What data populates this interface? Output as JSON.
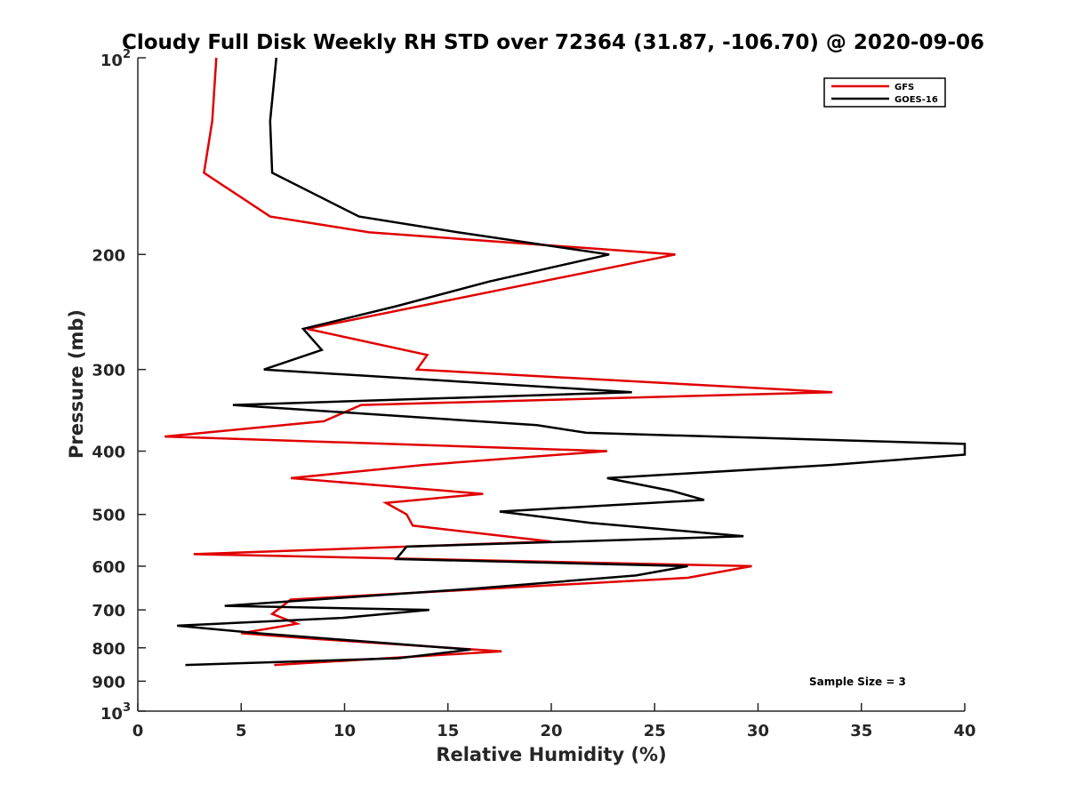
{
  "chart_data": {
    "type": "line",
    "title": "Cloudy Full Disk Weekly RH STD over 72364 (31.87, -106.70) @ 2020-09-06",
    "xlabel": "Relative Humidity (%)",
    "ylabel": "Pressure (mb)",
    "xlim": [
      0,
      40
    ],
    "ylim": [
      100,
      1000
    ],
    "y_scale": "log",
    "y_reversed": true,
    "grid": false,
    "legend_position": "top-right",
    "annotation": "Sample Size = 3",
    "x_ticks": [
      "0",
      "5",
      "10",
      "15",
      "20",
      "25",
      "30",
      "35",
      "40"
    ],
    "y_ticks": [
      {
        "value": 100,
        "base": "10",
        "exp": "2",
        "label": ""
      },
      {
        "value": 200,
        "base": "",
        "exp": "",
        "label": "200"
      },
      {
        "value": 300,
        "base": "",
        "exp": "",
        "label": "300"
      },
      {
        "value": 400,
        "base": "",
        "exp": "",
        "label": "400"
      },
      {
        "value": 500,
        "base": "",
        "exp": "",
        "label": "500"
      },
      {
        "value": 600,
        "base": "",
        "exp": "",
        "label": "600"
      },
      {
        "value": 700,
        "base": "",
        "exp": "",
        "label": "700"
      },
      {
        "value": 800,
        "base": "",
        "exp": "",
        "label": "800"
      },
      {
        "value": 900,
        "base": "",
        "exp": "",
        "label": "900"
      },
      {
        "value": 1000,
        "base": "10",
        "exp": "3",
        "label": ""
      }
    ],
    "series": [
      {
        "name": "GFS",
        "color": "#e00000",
        "x": [
          3.8,
          3.6,
          3.2,
          6.4,
          11.2,
          26.0,
          8.2,
          14.0,
          13.5,
          33.6,
          10.8,
          9.0,
          1.3,
          22.7,
          13.8,
          7.4,
          16.7,
          12.0,
          13.0,
          13.3,
          20.0,
          2.7,
          29.7,
          26.6,
          7.4,
          6.5,
          7.7,
          5.0,
          8.5,
          17.6,
          6.6
        ],
        "y": [
          100,
          125,
          150,
          175,
          185,
          200,
          260,
          285,
          300,
          325,
          340,
          360,
          380,
          400,
          420,
          440,
          465,
          480,
          500,
          520,
          550,
          575,
          600,
          625,
          675,
          710,
          735,
          760,
          775,
          810,
          850
        ]
      },
      {
        "name": "GOES-16",
        "color": "#000000",
        "x": [
          6.7,
          6.4,
          6.5,
          10.7,
          15.5,
          22.8,
          17.0,
          12.5,
          8.0,
          8.9,
          6.1,
          23.9,
          4.6,
          19.3,
          21.7,
          40.0,
          40.0,
          33.5,
          22.7,
          25.8,
          27.4,
          17.5,
          21.9,
          29.3,
          13.0,
          12.5,
          26.6,
          24.1,
          16.1,
          4.2,
          14.1,
          9.9,
          1.9,
          5.8,
          16.1,
          12.6,
          2.3
        ],
        "y": [
          100,
          125,
          150,
          175,
          185,
          200,
          220,
          240,
          260,
          280,
          300,
          325,
          340,
          365,
          375,
          390,
          405,
          420,
          440,
          460,
          475,
          495,
          515,
          540,
          560,
          585,
          600,
          620,
          650,
          690,
          700,
          720,
          740,
          760,
          805,
          830,
          850
        ]
      }
    ]
  }
}
